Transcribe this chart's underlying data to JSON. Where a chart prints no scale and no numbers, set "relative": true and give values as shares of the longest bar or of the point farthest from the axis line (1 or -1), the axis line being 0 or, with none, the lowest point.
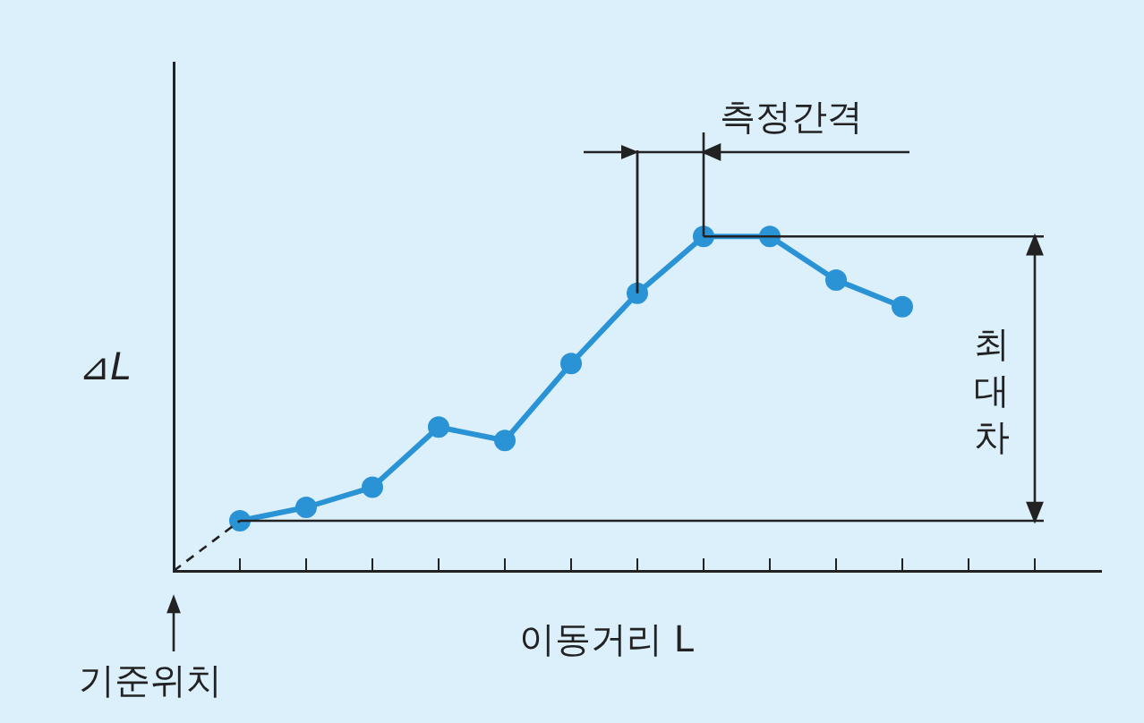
{
  "chart_data": {
    "type": "line",
    "relative": true,
    "xlabel": "이동거리 L",
    "ylabel": "⊿L",
    "categories": [
      null,
      null,
      null,
      null,
      null,
      null,
      null,
      null,
      null,
      null,
      null,
      null,
      null,
      null,
      null
    ],
    "series": [
      {
        "color": "#2a93d5",
        "marker": "circle",
        "line_style": "solid",
        "values": [
          null,
          0.15,
          0.19,
          0.25,
          0.43,
          0.39,
          0.62,
          0.83,
          1,
          1,
          0.87,
          0.79,
          null,
          null,
          null
        ]
      },
      {
        "color": "#222222",
        "marker": "none",
        "line_style": "dashed",
        "values": [
          0,
          0.15,
          null,
          null,
          null,
          null,
          null,
          null,
          null,
          null,
          null,
          null,
          null,
          null,
          null
        ]
      }
    ],
    "ref_lines": [
      {
        "axis": "y",
        "value": 0.15,
        "color": "#222222"
      },
      {
        "axis": "y",
        "value": 1,
        "color": "#222222"
      }
    ],
    "annotations": [
      "측정간격",
      "최대차",
      "기준위치"
    ],
    "grid": false,
    "legend": false
  }
}
